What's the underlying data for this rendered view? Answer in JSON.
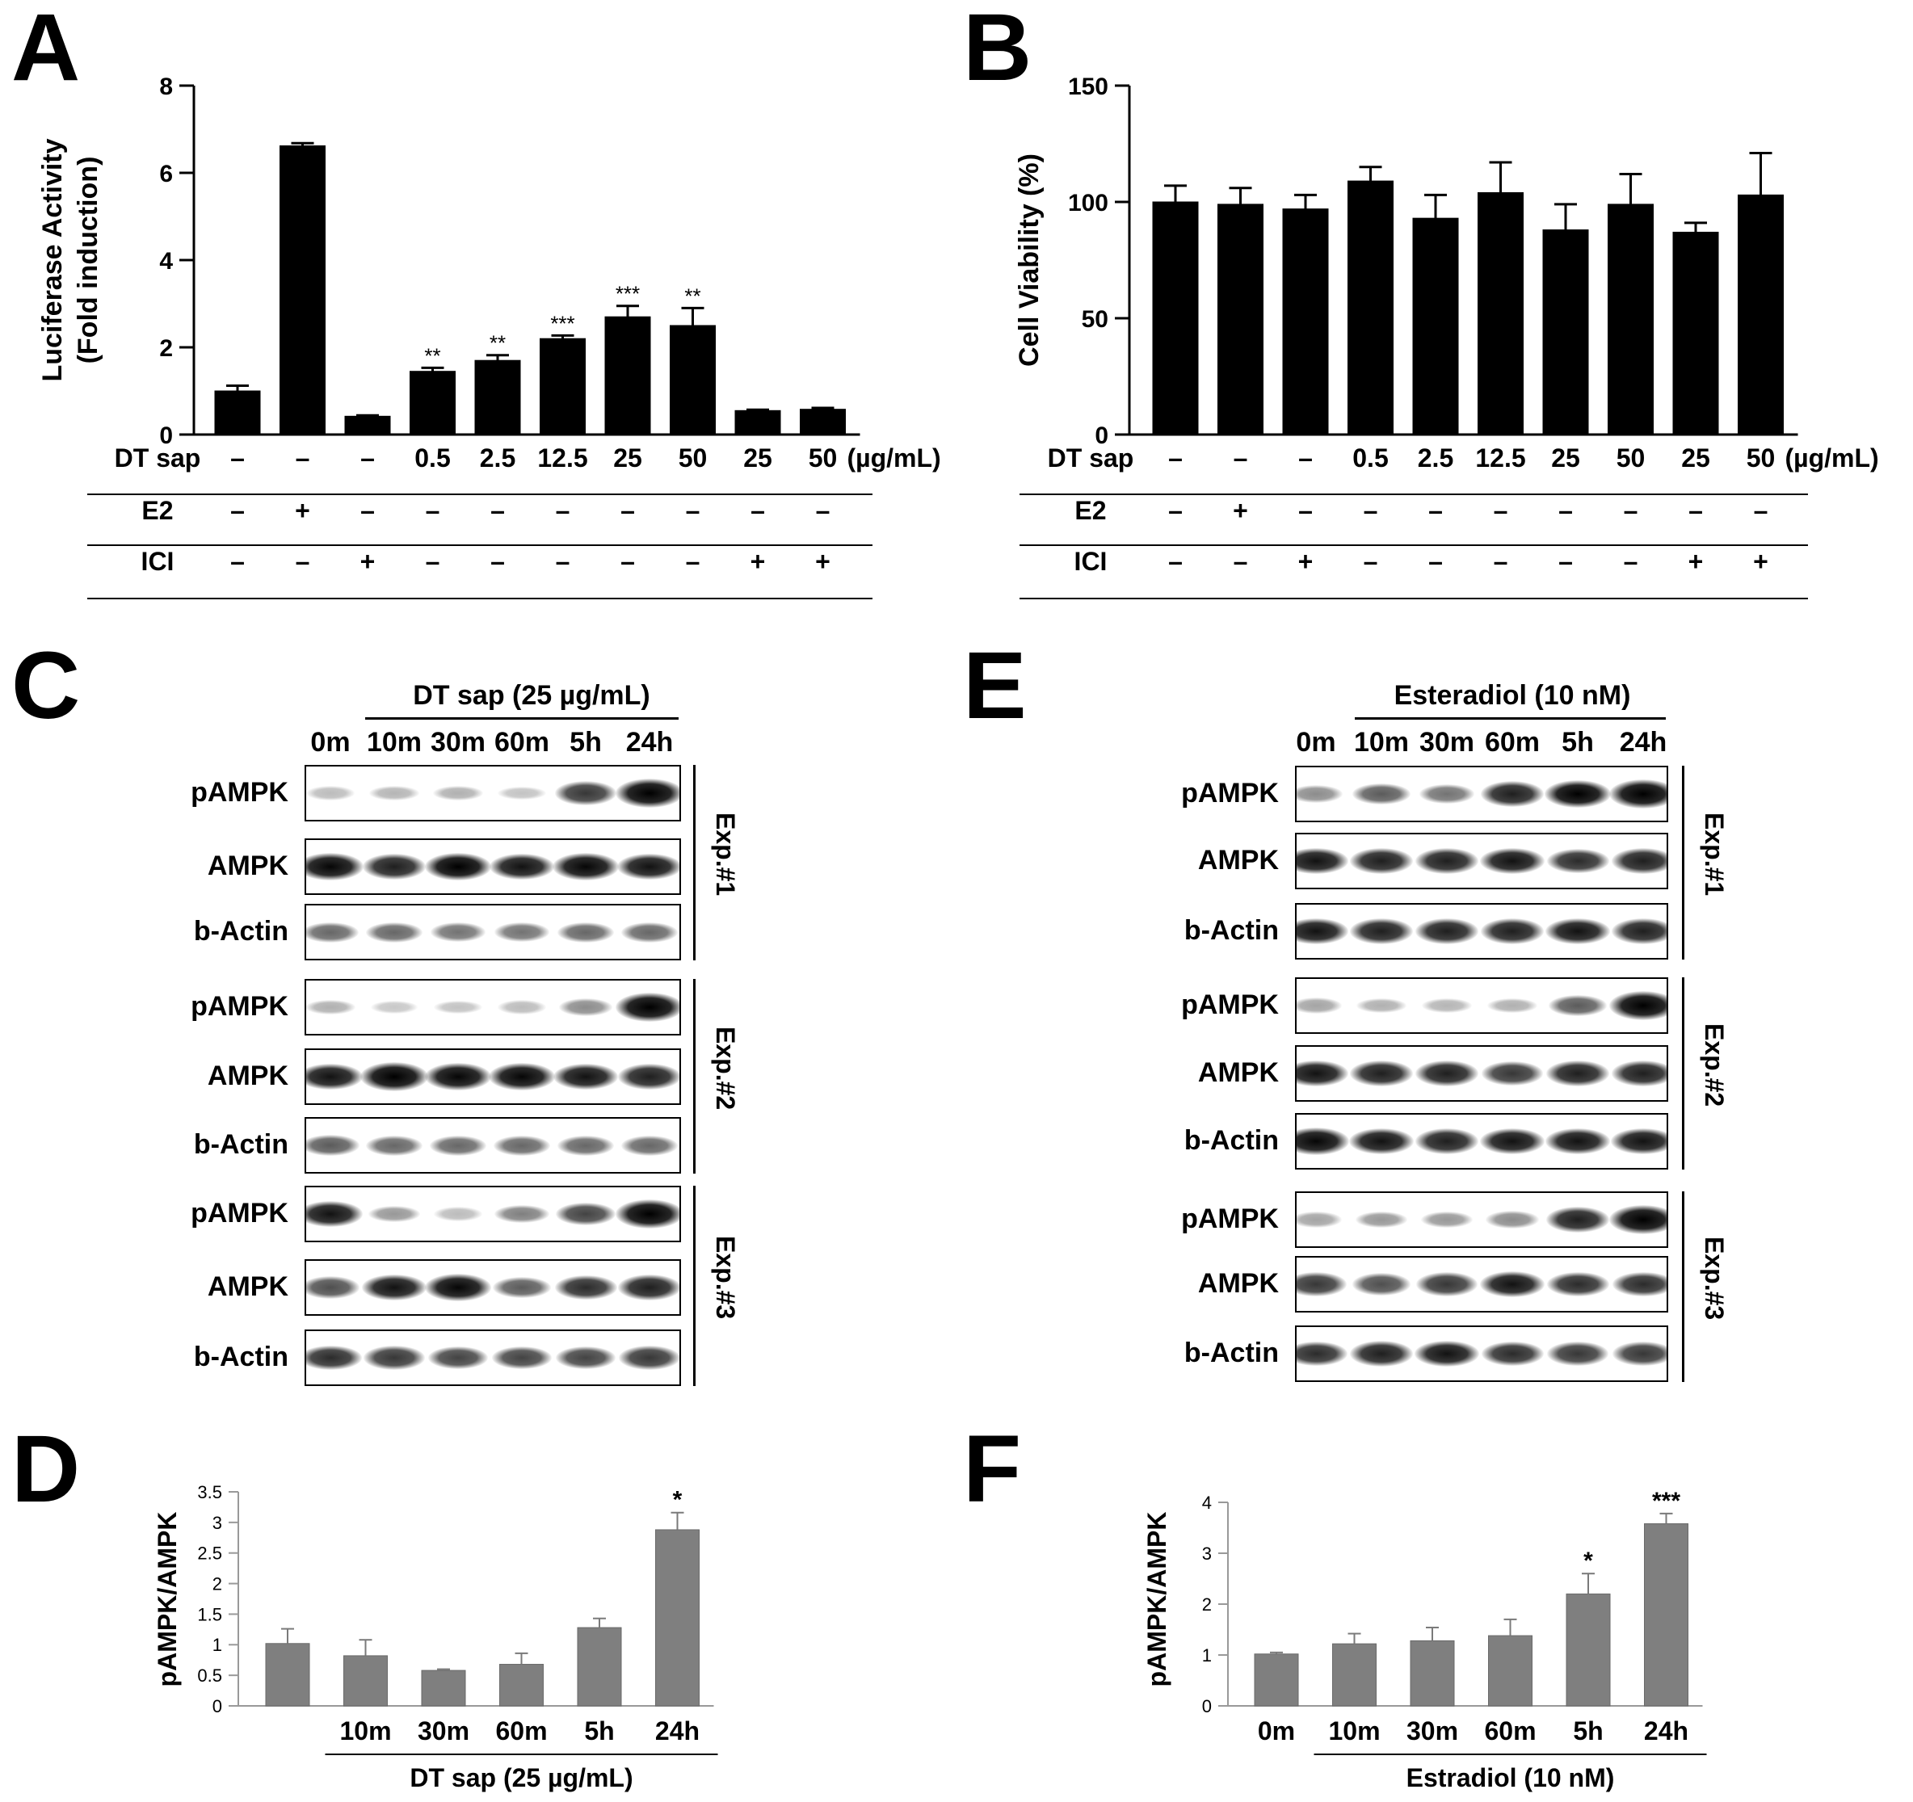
{
  "panels": {
    "a": "A",
    "b": "B",
    "c": "C",
    "d": "D",
    "e": "E",
    "f": "F"
  },
  "chart_data": [
    {
      "id": "A",
      "type": "bar",
      "ylabel": "Luciferase Activity",
      "ylabel2": "(Fold induction)",
      "ylim": [
        0,
        8
      ],
      "yticks": [
        0,
        2,
        4,
        6,
        8
      ],
      "values": [
        1.0,
        6.62,
        0.42,
        1.45,
        1.7,
        2.2,
        2.7,
        2.5,
        0.55,
        0.58
      ],
      "errors": [
        0.12,
        0.06,
        0.02,
        0.08,
        0.12,
        0.07,
        0.25,
        0.4,
        0.02,
        0.03
      ],
      "significance": [
        "",
        "",
        "",
        "**",
        "**",
        "***",
        "***",
        "**",
        "",
        ""
      ],
      "rows": [
        {
          "label": "DT sap",
          "cells": [
            "–",
            "–",
            "–",
            "0.5",
            "2.5",
            "12.5",
            "25",
            "50",
            "25",
            "50"
          ],
          "unit": "(µg/mL)"
        },
        {
          "label": "E2",
          "cells": [
            "–",
            "+",
            "–",
            "–",
            "–",
            "–",
            "–",
            "–",
            "–",
            "–"
          ]
        },
        {
          "label": "ICI",
          "cells": [
            "–",
            "–",
            "+",
            "–",
            "–",
            "–",
            "–",
            "–",
            "+",
            "+"
          ]
        }
      ],
      "color": "#000000"
    },
    {
      "id": "B",
      "type": "bar",
      "ylabel": "Cell Viability (%)",
      "ylim": [
        0,
        150
      ],
      "yticks": [
        0,
        50,
        100,
        150
      ],
      "values": [
        100,
        99,
        97,
        109,
        93,
        104,
        88,
        99,
        87,
        103
      ],
      "errors": [
        7,
        7,
        6,
        6,
        10,
        13,
        11,
        13,
        4,
        18
      ],
      "significance": [
        "",
        "",
        "",
        "",
        "",
        "",
        "",
        "",
        "",
        ""
      ],
      "rows": [
        {
          "label": "DT sap",
          "cells": [
            "–",
            "–",
            "–",
            "0.5",
            "2.5",
            "12.5",
            "25",
            "50",
            "25",
            "50"
          ],
          "unit": "(µg/mL)"
        },
        {
          "label": "E2",
          "cells": [
            "–",
            "+",
            "–",
            "–",
            "–",
            "–",
            "–",
            "–",
            "–",
            "–"
          ]
        },
        {
          "label": "ICI",
          "cells": [
            "–",
            "–",
            "+",
            "–",
            "–",
            "–",
            "–",
            "–",
            "+",
            "+"
          ]
        }
      ],
      "color": "#000000"
    },
    {
      "id": "D",
      "type": "bar",
      "ylabel": "pAMPK/AMPK",
      "ylim": [
        0,
        3.5
      ],
      "yticks": [
        "0",
        "0.5",
        "1",
        "1.5",
        "2",
        "2.5",
        "3",
        "3.5"
      ],
      "categories": [
        "",
        "10m",
        "30m",
        "60m",
        "5h",
        "24h"
      ],
      "values": [
        1.02,
        0.82,
        0.58,
        0.68,
        1.28,
        2.88
      ],
      "errors": [
        0.24,
        0.26,
        0.02,
        0.18,
        0.15,
        0.28
      ],
      "significance": [
        "",
        "",
        "",
        "",
        "",
        "*"
      ],
      "xlabel": "DT sap (25 µg/mL)",
      "color": "#7f7f7f"
    },
    {
      "id": "F",
      "type": "bar",
      "ylabel": "pAMPK/AMPK",
      "ylim": [
        0,
        4
      ],
      "yticks": [
        "0",
        "1",
        "2",
        "3",
        "4"
      ],
      "categories": [
        "0m",
        "10m",
        "30m",
        "60m",
        "5h",
        "24h"
      ],
      "values": [
        1.02,
        1.22,
        1.28,
        1.38,
        2.2,
        3.58
      ],
      "errors": [
        0.03,
        0.2,
        0.26,
        0.32,
        0.4,
        0.2
      ],
      "significance": [
        "",
        "",
        "",
        "",
        "*",
        "***"
      ],
      "xlabel": "Estradiol (10 nM)",
      "color": "#7f7f7f"
    }
  ],
  "blotC": {
    "title": "DT sap (25 µg/mL)",
    "lanes": [
      "0m",
      "10m",
      "30m",
      "60m",
      "5h",
      "24h"
    ],
    "rows": [
      "pAMPK",
      "AMPK",
      "b-Actin",
      "pAMPK",
      "AMPK",
      "b-Actin",
      "pAMPK",
      "AMPK",
      "b-Actin"
    ],
    "experiments": [
      "Exp.#1",
      "Exp.#2",
      "Exp.#3"
    ],
    "intensity": [
      [
        0.15,
        0.18,
        0.2,
        0.12,
        0.7,
        1.0
      ],
      [
        0.9,
        0.8,
        0.95,
        0.85,
        0.9,
        0.85
      ],
      [
        0.5,
        0.5,
        0.45,
        0.45,
        0.5,
        0.5
      ],
      [
        0.2,
        0.1,
        0.12,
        0.15,
        0.35,
        1.0
      ],
      [
        0.85,
        1.0,
        0.9,
        0.9,
        0.85,
        0.8
      ],
      [
        0.55,
        0.5,
        0.5,
        0.5,
        0.5,
        0.5
      ],
      [
        0.85,
        0.3,
        0.15,
        0.4,
        0.65,
        1.0
      ],
      [
        0.6,
        0.85,
        0.9,
        0.55,
        0.75,
        0.8
      ],
      [
        0.75,
        0.7,
        0.65,
        0.65,
        0.65,
        0.7
      ]
    ]
  },
  "blotE": {
    "title": "Esteradiol (10 nM)",
    "lanes": [
      "0m",
      "10m",
      "30m",
      "60m",
      "5h",
      "24h"
    ],
    "rows": [
      "pAMPK",
      "AMPK",
      "b-Actin",
      "pAMPK",
      "AMPK",
      "b-Actin",
      "pAMPK",
      "AMPK",
      "b-Actin"
    ],
    "experiments": [
      "Exp.#1",
      "Exp.#2",
      "Exp.#3"
    ],
    "intensity": [
      [
        0.35,
        0.55,
        0.45,
        0.8,
        0.95,
        1.0
      ],
      [
        0.85,
        0.8,
        0.8,
        0.85,
        0.75,
        0.8
      ],
      [
        0.85,
        0.8,
        0.8,
        0.8,
        0.85,
        0.8
      ],
      [
        0.25,
        0.2,
        0.18,
        0.2,
        0.55,
        1.0
      ],
      [
        0.85,
        0.8,
        0.8,
        0.7,
        0.8,
        0.8
      ],
      [
        0.9,
        0.85,
        0.8,
        0.85,
        0.85,
        0.85
      ],
      [
        0.25,
        0.3,
        0.3,
        0.35,
        0.8,
        1.0
      ],
      [
        0.7,
        0.6,
        0.7,
        0.85,
        0.75,
        0.75
      ],
      [
        0.75,
        0.8,
        0.85,
        0.75,
        0.7,
        0.7
      ]
    ]
  }
}
